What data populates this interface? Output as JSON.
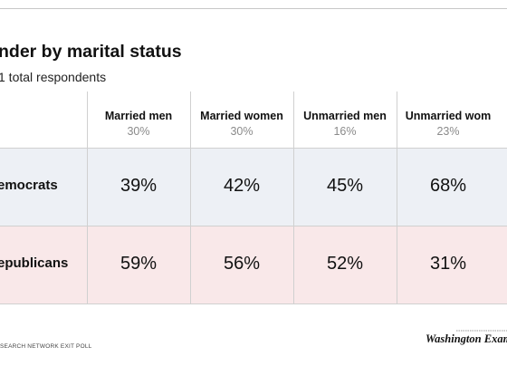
{
  "title": "nder by marital status",
  "subtitle": "1 total respondents",
  "chart_data": {
    "type": "table",
    "columns": [
      {
        "label": "Married men",
        "share": "30%"
      },
      {
        "label": "Married women",
        "share": "30%"
      },
      {
        "label": "Unmarried men",
        "share": "16%"
      },
      {
        "label": "Unmarried wom",
        "share": "23%"
      }
    ],
    "rows": [
      {
        "label": "emocrats",
        "values": [
          "39%",
          "42%",
          "45%",
          "68%"
        ],
        "color": "#edf0f5"
      },
      {
        "label": "epublicans",
        "values": [
          "59%",
          "56%",
          "52%",
          "31%"
        ],
        "color": "#f9e8e9"
      }
    ]
  },
  "source": "SEARCH NETWORK EXIT POLL",
  "logo": "Washington Exam"
}
